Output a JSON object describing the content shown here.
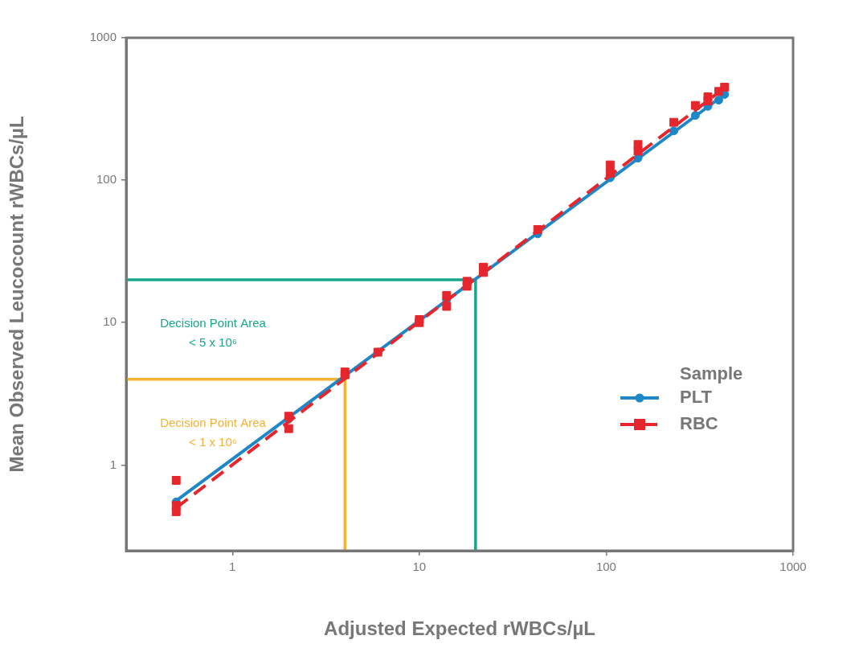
{
  "chart_data": {
    "type": "scatter",
    "x_label": "Adjusted Expected rWBCs/µL",
    "y_label": "Mean Observed Leucocount rWBCs/µL",
    "log": true,
    "grid": false,
    "xlim": [
      0.27,
      1000
    ],
    "ylim": [
      0.25,
      1000
    ],
    "xticks": [
      1,
      10,
      100,
      1000
    ],
    "yticks": [
      1,
      10,
      100,
      1000
    ],
    "legend": "right",
    "legend_title": "Sample",
    "series": [
      {
        "name": "PLT",
        "color": "#1e87c8",
        "marker": "circle",
        "line_style": "solid",
        "x": [
          0.5,
          2,
          4,
          6,
          10,
          14,
          18,
          22,
          43,
          105,
          148,
          230,
          300,
          350,
          400,
          430
        ],
        "values": [
          0.55,
          2.1,
          4.3,
          6.2,
          10.3,
          14.5,
          19,
          23,
          42,
          104,
          143,
          222,
          285,
          330,
          365,
          400
        ],
        "fit": {
          "x": [
            0.5,
            430
          ],
          "values": [
            0.56,
            400
          ]
        }
      },
      {
        "name": "RBC",
        "color": "#e5262d",
        "marker": "square",
        "line_style": "dashed",
        "x": [
          0.5,
          0.5,
          0.5,
          2,
          2,
          4,
          4,
          6,
          10,
          10,
          14,
          14,
          18,
          18,
          22,
          22,
          43,
          105,
          105,
          148,
          148,
          230,
          300,
          350,
          350,
          400,
          430
        ],
        "values": [
          0.78,
          0.52,
          0.47,
          2.2,
          1.8,
          4.5,
          4.3,
          6.2,
          10.5,
          10,
          15.5,
          13,
          19.5,
          18,
          22.5,
          24.5,
          45,
          128,
          112,
          178,
          160,
          255,
          335,
          385,
          360,
          420,
          450
        ],
        "fit": {
          "x": [
            0.5,
            430
          ],
          "values": [
            0.5,
            445
          ]
        }
      }
    ],
    "decision_points": [
      {
        "value": 20,
        "color": "#17a58c",
        "label": [
          "Decision Point Area",
          "< 5 x 10⁶"
        ]
      },
      {
        "value": 4,
        "color": "#f4b133",
        "label": [
          "Decision Point Area",
          "< 1 x 10⁶"
        ]
      }
    ]
  }
}
